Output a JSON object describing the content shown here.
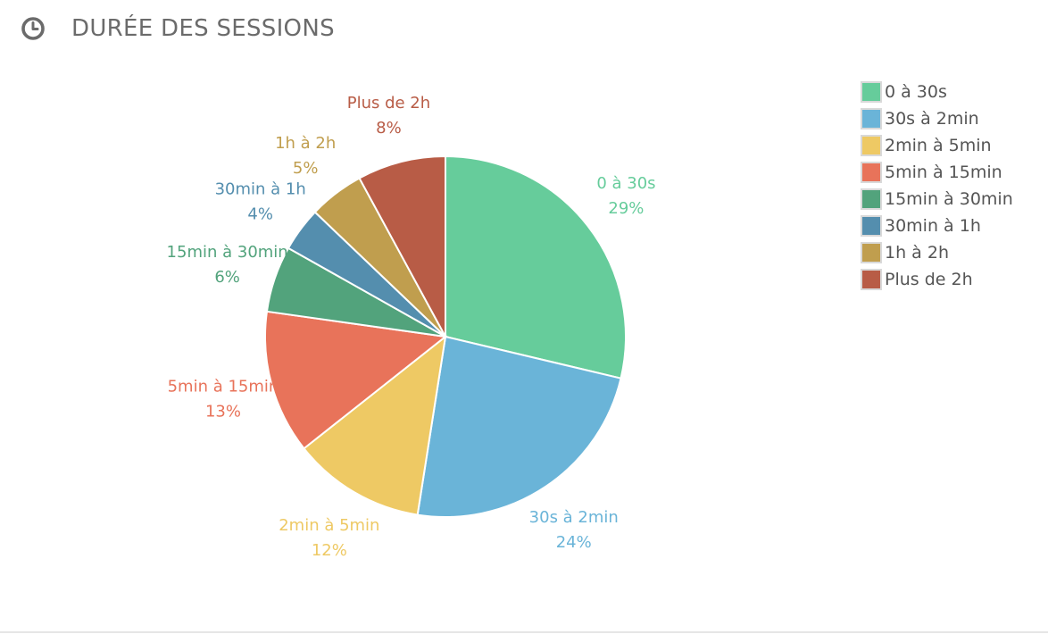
{
  "header": {
    "title": "DURÉE DES SESSIONS",
    "icon": "clock-icon"
  },
  "chart_data": {
    "type": "pie",
    "title": "DURÉE DES SESSIONS",
    "legend_position": "top-right",
    "start_angle_deg": 0,
    "direction": "clockwise",
    "slices": [
      {
        "label": "0 à 30s",
        "value": 29,
        "pct_label": "29%",
        "color": "#66cc9b"
      },
      {
        "label": "30s à 2min",
        "value": 24,
        "pct_label": "24%",
        "color": "#6ab4d8"
      },
      {
        "label": "2min à 5min",
        "value": 12,
        "pct_label": "12%",
        "color": "#eec964"
      },
      {
        "label": "5min à 15min",
        "value": 13,
        "pct_label": "13%",
        "color": "#e8735a"
      },
      {
        "label": "15min à 30min",
        "value": 6,
        "pct_label": "6%",
        "color": "#52a37c"
      },
      {
        "label": "30min à 1h",
        "value": 4,
        "pct_label": "4%",
        "color": "#548eae"
      },
      {
        "label": "1h à 2h",
        "value": 5,
        "pct_label": "5%",
        "color": "#c09e4e"
      },
      {
        "label": "Plus de 2h",
        "value": 8,
        "pct_label": "8%",
        "color": "#b85c46"
      }
    ]
  }
}
